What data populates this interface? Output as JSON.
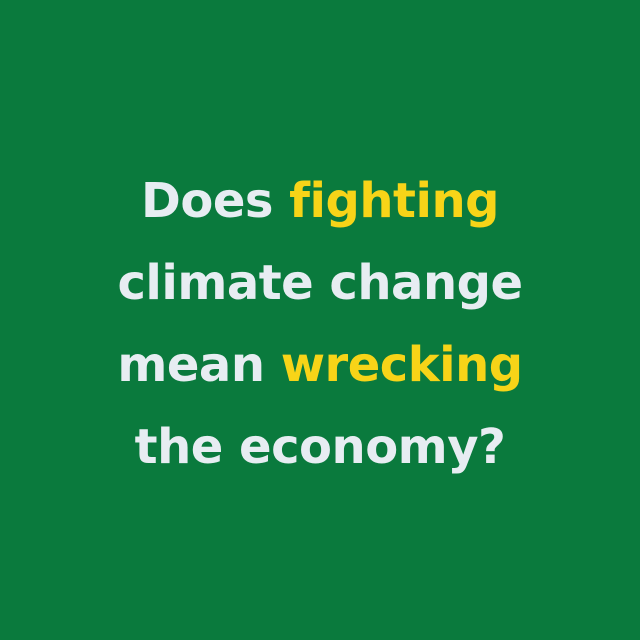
{
  "colors": {
    "background": "#0a7a3d",
    "text": "#e7edf2",
    "highlight": "#f7d418"
  },
  "headline": {
    "line1": {
      "pre": "Does ",
      "highlight": "fighting"
    },
    "line2": {
      "text": "climate change"
    },
    "line3": {
      "pre": "mean ",
      "highlight": "wrecking"
    },
    "line4": {
      "text": "the economy?"
    }
  }
}
